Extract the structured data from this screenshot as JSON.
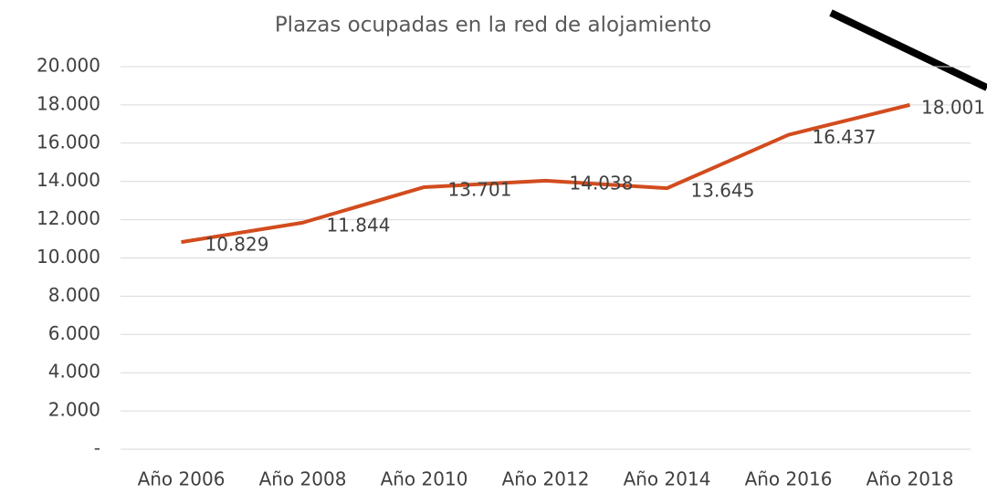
{
  "chart_data": {
    "type": "line",
    "title": "Plazas ocupadas en la red de alojamiento",
    "categories": [
      "Año 2006",
      "Año 2008",
      "Año 2010",
      "Año 2012",
      "Año 2014",
      "Año 2016",
      "Año 2018"
    ],
    "series": [
      {
        "name": "Plazas ocupadas",
        "color": "#d24c1e",
        "values": [
          10829,
          11844,
          13701,
          14038,
          13645,
          16437,
          18001
        ],
        "value_labels": [
          "10.829",
          "11.844",
          "13.701",
          "14.038",
          "13.645",
          "16.437",
          "18.001"
        ]
      }
    ],
    "ylim": [
      0,
      20000
    ],
    "yticks": [
      {
        "value": 0,
        "label": "-"
      },
      {
        "value": 2000,
        "label": "2.000"
      },
      {
        "value": 4000,
        "label": "4.000"
      },
      {
        "value": 6000,
        "label": "6.000"
      },
      {
        "value": 8000,
        "label": "8.000"
      },
      {
        "value": 10000,
        "label": "10.000"
      },
      {
        "value": 12000,
        "label": "12.000"
      },
      {
        "value": 14000,
        "label": "14.000"
      },
      {
        "value": 16000,
        "label": "16.000"
      },
      {
        "value": 18000,
        "label": "18.000"
      },
      {
        "value": 20000,
        "label": "20.000"
      }
    ],
    "grid": true
  }
}
